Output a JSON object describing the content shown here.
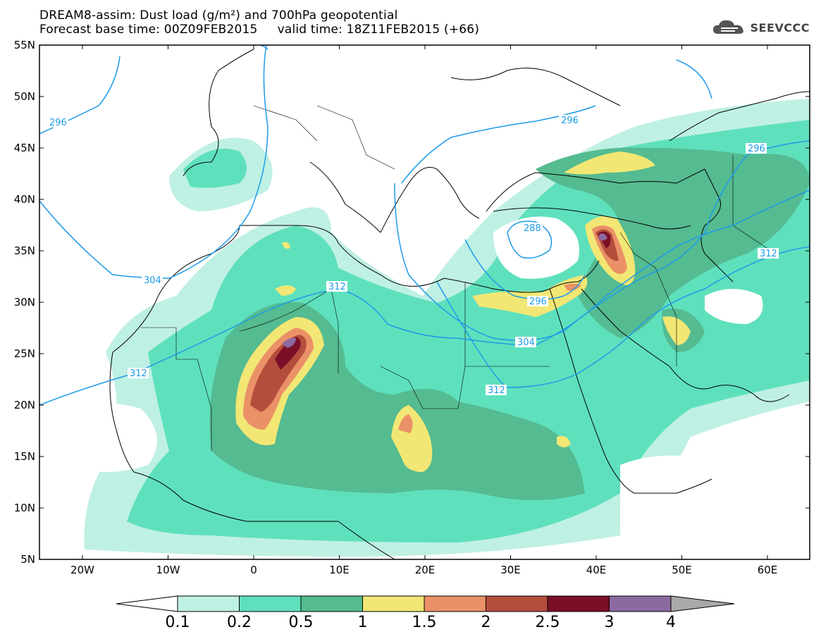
{
  "title": {
    "line1": "DREAM8-assim: Dust load (g/m²) and 700hPa geopotential",
    "line2": "Forecast base time: 00Z09FEB2015     valid time: 18Z11FEB2015 (+66)"
  },
  "logo": {
    "text": "SEEVCCC",
    "icon": "cloud-logo-icon"
  },
  "axes": {
    "lat_labels": [
      "55N",
      "50N",
      "45N",
      "40N",
      "35N",
      "30N",
      "25N",
      "20N",
      "15N",
      "10N",
      "5N"
    ],
    "lon_labels": [
      "20W",
      "10W",
      "0",
      "10E",
      "20E",
      "30E",
      "40E",
      "50E",
      "60E"
    ]
  },
  "contour_labels": [
    "296",
    "304",
    "312",
    "296",
    "288",
    "296",
    "304",
    "312",
    "312",
    "312",
    "296"
  ],
  "colorbar": {
    "labels": [
      "0.1",
      "0.2",
      "0.5",
      "1",
      "1.5",
      "2",
      "2.5",
      "3",
      "4"
    ],
    "colors": [
      "#ffffff",
      "#bff0e4",
      "#5fe0bd",
      "#55bb91",
      "#f2e774",
      "#ea9167",
      "#b44d3c",
      "#7b0f27",
      "#8c6aa0",
      "#a9a9a9"
    ]
  },
  "palette": {
    "contour": "#1e9be8",
    "border": "#000000",
    "dust_01": "#bff0e4",
    "dust_02": "#5fe0bd",
    "dust_05": "#55bb91",
    "dust_1": "#f2e774",
    "dust_15": "#ea9167",
    "dust_2": "#b44d3c",
    "dust_25": "#7b0f27",
    "dust_3": "#8c6aa0"
  }
}
